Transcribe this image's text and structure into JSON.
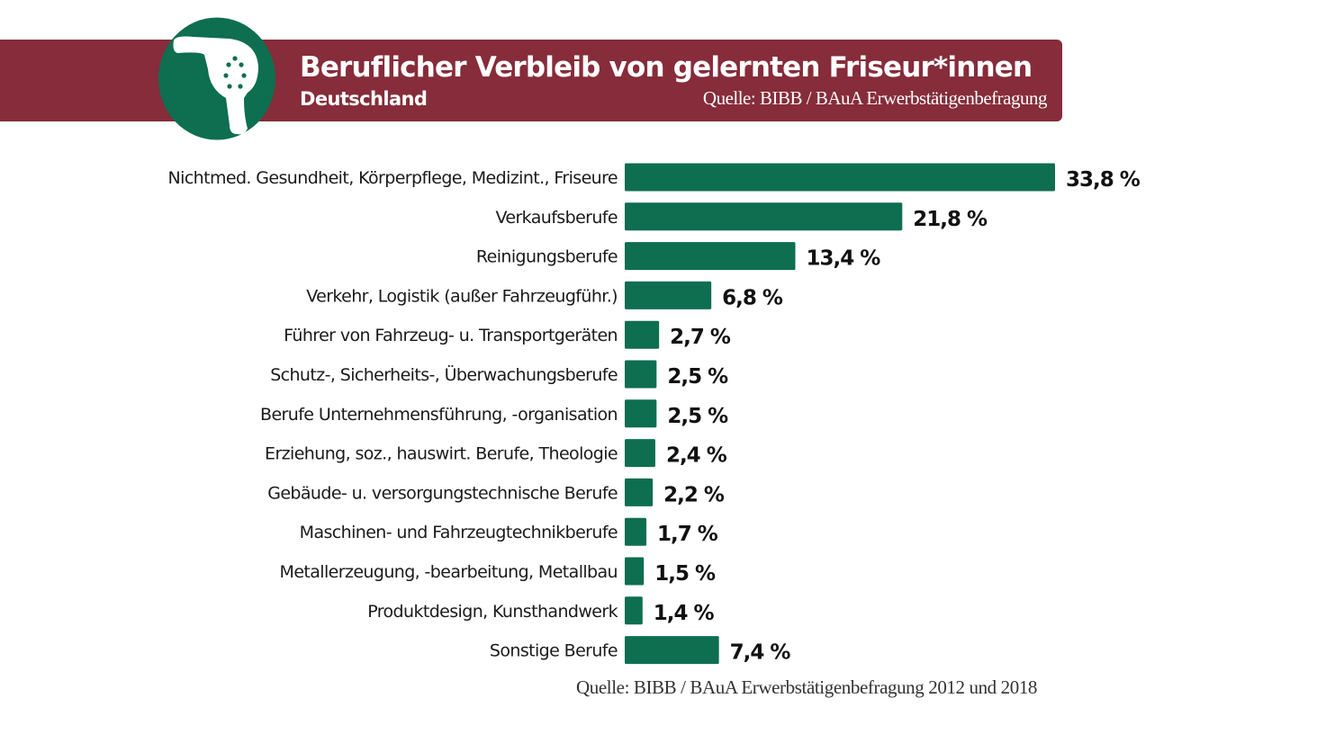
{
  "header": {
    "title": "Beruflicher Verbleib von gelernten Friseur*innen",
    "subtitle": "Deutschland",
    "source": "Quelle:  BIBB / BAuA Erwerbstätigenbefragung",
    "logo_icon": "hair-dryer-icon"
  },
  "footer": {
    "source": "Quelle:  BIBB / BAuA Erwerbstätigenbefragung 2012 und 2018"
  },
  "colors": {
    "banner": "#862c3a",
    "bar": "#0e6e50",
    "logo_circle": "#0e6e50"
  },
  "chart_data": {
    "type": "bar",
    "orientation": "horizontal",
    "title": "Beruflicher Verbleib von gelernten Friseur*innen",
    "subtitle": "Deutschland",
    "xlabel": "",
    "ylabel": "",
    "unit": "%",
    "xlim": [
      0,
      34
    ],
    "grid": false,
    "legend": "none",
    "categories": [
      "Nichtmed.  Gesundheit, Körperpflege, Medizint., Friseure",
      "Verkaufsberufe",
      "Reinigungsberufe",
      "Verkehr, Logistik (außer Fahrzeugführ.)",
      "Führer von Fahrzeug- u. Transportgeräten",
      "Schutz-, Sicherheits-, Überwachungsberufe",
      "Berufe Unternehmensführung, -organisation",
      "Erziehung, soz., hauswirt. Berufe, Theologie",
      "Gebäude- u. versorgungstechnische Berufe",
      "Maschinen- und Fahrzeugtechnikberufe",
      "Metallerzeugung, -bearbeitung, Metallbau",
      "Produktdesign, Kunsthandwerk",
      "Sonstige Berufe"
    ],
    "values": [
      33.8,
      21.8,
      13.4,
      6.8,
      2.7,
      2.5,
      2.5,
      2.4,
      2.2,
      1.7,
      1.5,
      1.4,
      7.4
    ],
    "value_labels": [
      "33,8 %",
      "21,8 %",
      "13,4 %",
      "6,8 %",
      "2,7 %",
      "2,5 %",
      "2,5 %",
      "2,4 %",
      "2,2 %",
      "1,7 %",
      "1,5 %",
      "1,4 %",
      "7,4 %"
    ]
  }
}
